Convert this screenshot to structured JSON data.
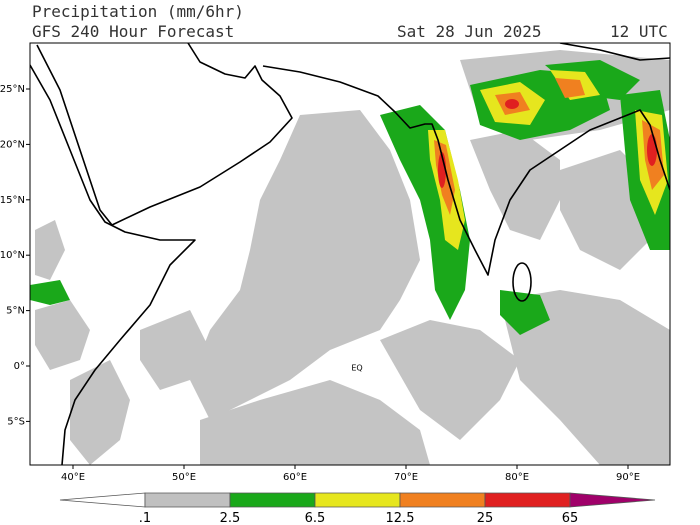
{
  "header": {
    "title": "Precipitation (mm/6hr)",
    "subtitle": "GFS 240 Hour Forecast",
    "date": "Sat 28 Jun 2025",
    "time": "12 UTC"
  },
  "map": {
    "lat_labels": [
      {
        "value": 25,
        "label": "25°N"
      },
      {
        "value": 20,
        "label": "20°N"
      },
      {
        "value": 15,
        "label": "15°N"
      },
      {
        "value": 10,
        "label": "10°N"
      },
      {
        "value": 5,
        "label": "5°N"
      },
      {
        "value": 0,
        "label": "0°"
      },
      {
        "value": -5,
        "label": "5°S"
      }
    ],
    "lon_labels": [
      {
        "value": 40,
        "label": "40°E"
      },
      {
        "value": 50,
        "label": "50°E"
      },
      {
        "value": 60,
        "label": "60°E"
      },
      {
        "value": 70,
        "label": "70°E"
      },
      {
        "value": 80,
        "label": "80°E"
      },
      {
        "value": 90,
        "label": "90°E"
      }
    ],
    "equator_label": "EQ"
  },
  "legend": {
    "ticks": [
      {
        "value": 0.1,
        "label": ".1"
      },
      2.5,
      6.5,
      12.5,
      25,
      65
    ],
    "colors": [
      "#ffffff",
      "#c0c0c0",
      "#1aa81a",
      "#e6e61e",
      "#f08020",
      "#e02020",
      "#a0006a"
    ]
  }
}
